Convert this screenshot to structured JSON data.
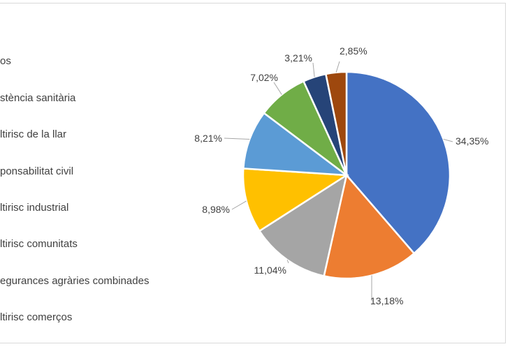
{
  "chart_data": {
    "type": "pie",
    "legend_position": "left",
    "legend": [
      "os",
      "stència sanitària",
      "ltirisc de la llar",
      "ponsabilitat civil",
      "ltirisc industrial",
      "ltirisc comunitats",
      "egurances agràries combinades",
      "ltirisc comerços"
    ],
    "slices": [
      {
        "value": 34.35,
        "label": "34,35%",
        "color": "#4472c4"
      },
      {
        "value": 13.18,
        "label": "13,18%",
        "color": "#ed7d31"
      },
      {
        "value": 11.04,
        "label": "11,04%",
        "color": "#a5a5a5"
      },
      {
        "value": 8.98,
        "label": "8,98%",
        "color": "#ffc000"
      },
      {
        "value": 8.21,
        "label": "8,21%",
        "color": "#5b9bd5"
      },
      {
        "value": 7.02,
        "label": "7,02%",
        "color": "#70ad47"
      },
      {
        "value": 3.21,
        "label": "3,21%",
        "color": "#264478"
      },
      {
        "value": 2.85,
        "label": "2,85%",
        "color": "#9e480e"
      }
    ]
  }
}
